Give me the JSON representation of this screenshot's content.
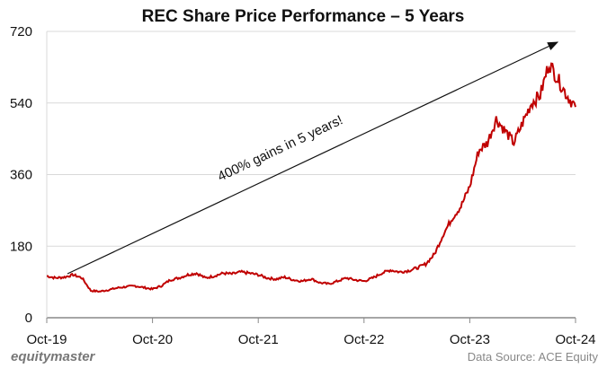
{
  "chart_data": {
    "type": "line",
    "title": "REC Share Price Performance  – 5 Years",
    "x_tick_labels": [
      "Oct-19",
      "Oct-20",
      "Oct-21",
      "Oct-22",
      "Oct-23",
      "Oct-24"
    ],
    "y_ticks": [
      0,
      180,
      360,
      540,
      720
    ],
    "ylim": [
      0,
      720
    ],
    "grid": "horizontal",
    "series_color": "#C00000",
    "annotation": "400% gains in 5 years!",
    "x": [
      "Oct-19",
      "Nov-19",
      "Dec-19",
      "Jan-20",
      "Feb-20",
      "Mar-20",
      "Apr-20",
      "May-20",
      "Jun-20",
      "Jul-20",
      "Aug-20",
      "Sep-20",
      "Oct-20",
      "Nov-20",
      "Dec-20",
      "Jan-21",
      "Feb-21",
      "Mar-21",
      "Apr-21",
      "May-21",
      "Jun-21",
      "Jul-21",
      "Aug-21",
      "Sep-21",
      "Oct-21",
      "Nov-21",
      "Dec-21",
      "Jan-22",
      "Feb-22",
      "Mar-22",
      "Apr-22",
      "May-22",
      "Jun-22",
      "Jul-22",
      "Aug-22",
      "Sep-22",
      "Oct-22",
      "Nov-22",
      "Dec-22",
      "Jan-23",
      "Feb-23",
      "Mar-23",
      "Apr-23",
      "May-23",
      "Jun-23",
      "Jul-23",
      "Aug-23",
      "Sep-23",
      "Oct-23",
      "Nov-23",
      "Dec-23",
      "Jan-24",
      "Feb-24",
      "Mar-24",
      "Apr-24",
      "May-24",
      "Jun-24",
      "Jul-24",
      "Aug-24",
      "Sep-24",
      "Oct-24"
    ],
    "values": [
      105,
      100,
      102,
      108,
      100,
      68,
      66,
      70,
      75,
      78,
      80,
      76,
      72,
      80,
      95,
      100,
      108,
      112,
      100,
      105,
      112,
      110,
      115,
      112,
      108,
      100,
      97,
      102,
      95,
      92,
      98,
      88,
      85,
      92,
      100,
      95,
      92,
      100,
      112,
      120,
      115,
      118,
      125,
      135,
      160,
      210,
      250,
      280,
      330,
      420,
      440,
      500,
      470,
      440,
      490,
      540,
      560,
      640,
      600,
      560,
      530
    ]
  },
  "footer": {
    "brand": "equitymaster",
    "source": "Data Source: ACE Equity"
  }
}
